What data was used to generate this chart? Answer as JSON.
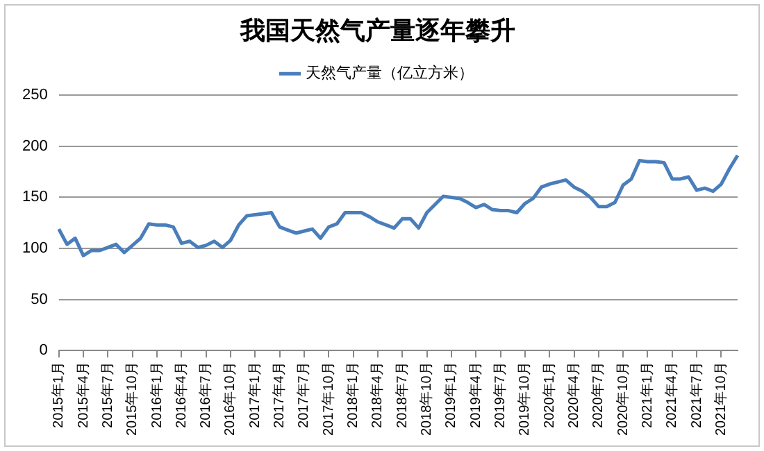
{
  "chart_data": {
    "type": "line",
    "title": "我国天然气产量逐年攀升",
    "categories": [
      "2015年1月",
      null,
      null,
      "2015年4月",
      null,
      null,
      "2015年7月",
      null,
      null,
      "2015年10月",
      null,
      null,
      "2016年1月",
      null,
      null,
      "2016年4月",
      null,
      null,
      "2016年7月",
      null,
      null,
      "2016年10月",
      null,
      null,
      "2017年1月",
      null,
      null,
      "2017年4月",
      null,
      null,
      "2017年7月",
      null,
      null,
      "2017年10月",
      null,
      null,
      "2018年1月",
      null,
      null,
      "2018年4月",
      null,
      null,
      "2018年7月",
      null,
      null,
      "2018年10月",
      null,
      null,
      "2019年1月",
      null,
      null,
      "2019年4月",
      null,
      null,
      "2019年7月",
      null,
      null,
      "2019年10月",
      null,
      null,
      "2020年1月",
      null,
      null,
      "2020年4月",
      null,
      null,
      "2020年7月",
      null,
      null,
      "2020年10月",
      null,
      null,
      "2021年1月",
      null,
      null,
      "2021年4月",
      null,
      null,
      "2021年7月",
      null,
      null,
      "2021年10月",
      null,
      null
    ],
    "series": [
      {
        "name": "天然气产量（亿立方米）",
        "color": "#4a7ebb",
        "values": [
          119,
          104,
          110,
          93,
          98,
          98,
          101,
          104,
          96,
          103,
          110,
          124,
          123,
          123,
          121,
          105,
          107,
          101,
          103,
          107,
          101,
          108,
          123,
          132,
          133,
          134,
          135,
          121,
          118,
          115,
          117,
          119,
          110,
          121,
          124,
          135,
          135,
          135,
          131,
          126,
          123,
          120,
          129,
          129,
          120,
          135,
          143,
          151,
          150,
          149,
          145,
          140,
          143,
          138,
          137,
          137,
          135,
          144,
          149,
          160,
          163,
          165,
          167,
          160,
          156,
          150,
          141,
          141,
          145,
          162,
          168,
          186,
          185,
          185,
          184,
          168,
          168,
          170,
          157,
          159,
          156,
          163,
          178,
          191
        ]
      }
    ],
    "ylim": [
      0,
      250
    ],
    "yticks": [
      0,
      50,
      100,
      150,
      200,
      250
    ],
    "grid": "y",
    "legend": "top",
    "marker": "none",
    "line_style": "solid"
  }
}
